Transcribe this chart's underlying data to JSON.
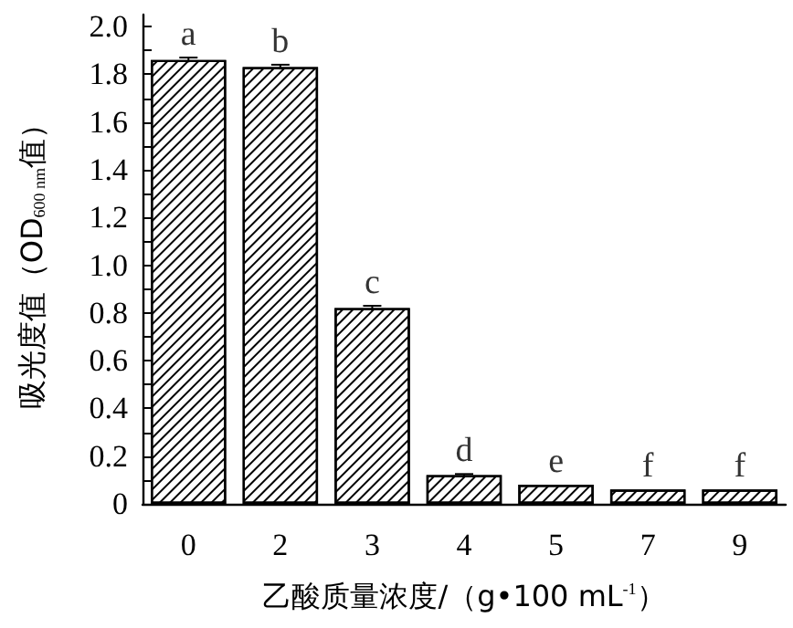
{
  "chart_data": {
    "type": "bar",
    "xlabel": "乙酸质量浓度/（g•100 mL$^{-1}$）",
    "ylabel": "吸光度值（OD$_{600 nm}$值）",
    "categories": [
      "0",
      "2",
      "3",
      "4",
      "5",
      "7",
      "9"
    ],
    "values": [
      1.86,
      1.83,
      0.82,
      0.12,
      0.08,
      0.06,
      0.06
    ],
    "errors": [
      0.01,
      0.01,
      0.01,
      0.005,
      null,
      null,
      null
    ],
    "color": "#ffffff",
    "ylim": [
      0,
      2.05
    ],
    "yticks": [
      0,
      {
        "value": 0.1,
        "label": null
      },
      0.2,
      {
        "value": 0.3,
        "label": null
      },
      0.4,
      {
        "value": 0.5,
        "label": null
      },
      0.6,
      {
        "value": 0.7,
        "label": null
      },
      0.8,
      {
        "value": 0.9,
        "label": null
      },
      {
        "value": 1,
        "label": "1.0"
      },
      {
        "value": 1.1,
        "label": null
      },
      1.2,
      {
        "value": 1.3,
        "label": null
      },
      1.4,
      {
        "value": 1.5,
        "label": null
      },
      1.6,
      {
        "value": 1.7,
        "label": null
      },
      1.8,
      {
        "value": 1.9,
        "label": null
      },
      {
        "value": 2,
        "label": "2.0"
      }
    ],
    "annotations": [
      {
        "text": "a",
        "x": "0",
        "y": 1.87
      },
      {
        "text": "b",
        "x": "2",
        "y": 1.84
      },
      {
        "text": "c",
        "x": "3",
        "y": 0.83
      },
      {
        "text": "d",
        "x": "4",
        "y": 0.125
      },
      {
        "text": "e",
        "x": "5",
        "y": 0.08
      },
      {
        "text": "f",
        "x": "7",
        "y": 0.06
      },
      {
        "text": "f",
        "x": "9",
        "y": 0.06
      }
    ],
    "grid": false
  }
}
